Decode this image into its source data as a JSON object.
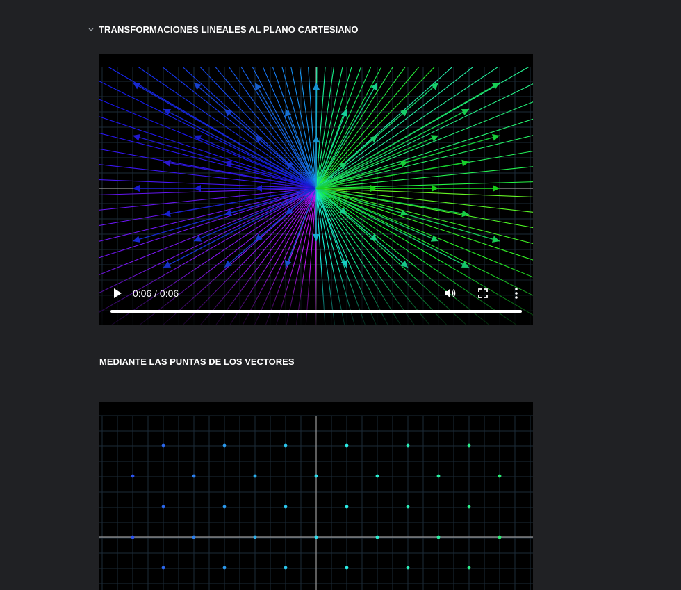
{
  "section": {
    "title": "TRANSFORMACIONES LINEALES AL PLANO CARTESIANO",
    "collapse_icon": "chevron-down-icon"
  },
  "video": {
    "time": "0:06 / 0:06",
    "progress": 1.0,
    "icons": [
      "play-icon",
      "volume-icon",
      "fullscreen-icon",
      "more-vert-icon"
    ]
  },
  "subheading": "MEDIANTE LAS PUNTAS DE LOS VECTORES",
  "colors": {
    "background": "#202124",
    "grid": "#1c2b38",
    "axis": "#9a9a9a"
  }
}
